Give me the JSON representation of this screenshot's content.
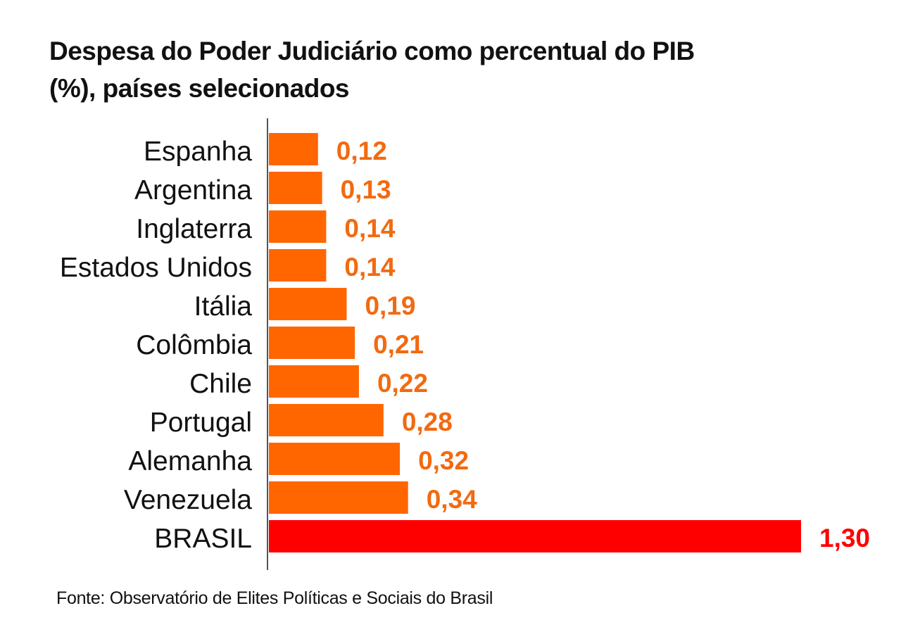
{
  "header": {
    "title_line1": "Despesa do Poder Judiciário como percentual do PIB",
    "title_line2": "(%), países selecionados"
  },
  "footer": {
    "source": "Fonte: Observatório de Elites Políticas e Sociais do Brasil"
  },
  "colors": {
    "bar": "#ff6600",
    "highlight_bar": "#ff0000",
    "label": "#f26a10",
    "highlight_label": "#ff0000",
    "axis": "#555555",
    "text": "#111111"
  },
  "chart_data": {
    "type": "bar",
    "orientation": "horizontal",
    "title": "Despesa do Poder Judiciário como percentual do PIB (%), países selecionados",
    "categories": [
      "Espanha",
      "Argentina",
      "Inglaterra",
      "Estados Unidos",
      "Itália",
      "Colômbia",
      "Chile",
      "Portugal",
      "Alemanha",
      "Venezuela",
      "BRASIL"
    ],
    "values": [
      0.12,
      0.13,
      0.14,
      0.14,
      0.19,
      0.21,
      0.22,
      0.28,
      0.32,
      0.34,
      1.3
    ],
    "value_labels": [
      "0,12",
      "0,13",
      "0,14",
      "0,14",
      "0,19",
      "0,21",
      "0,22",
      "0,28",
      "0,32",
      "0,34",
      "1,30"
    ],
    "highlight": "BRASIL",
    "xlim": [
      0,
      1.3
    ],
    "grid": false,
    "legend": "none"
  }
}
